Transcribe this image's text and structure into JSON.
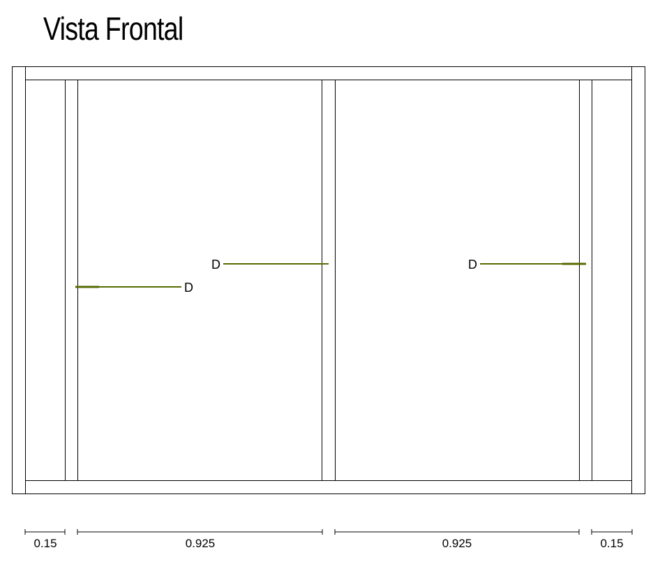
{
  "title": "Vista Frontal",
  "colors": {
    "line": "#000000",
    "accent": "#556b00"
  },
  "door_tags": [
    {
      "label": "D"
    },
    {
      "label": "D"
    },
    {
      "label": "D"
    }
  ],
  "dimensions": [
    {
      "label": "0.15"
    },
    {
      "label": "0.925"
    },
    {
      "label": "0.925"
    },
    {
      "label": "0.15"
    }
  ]
}
